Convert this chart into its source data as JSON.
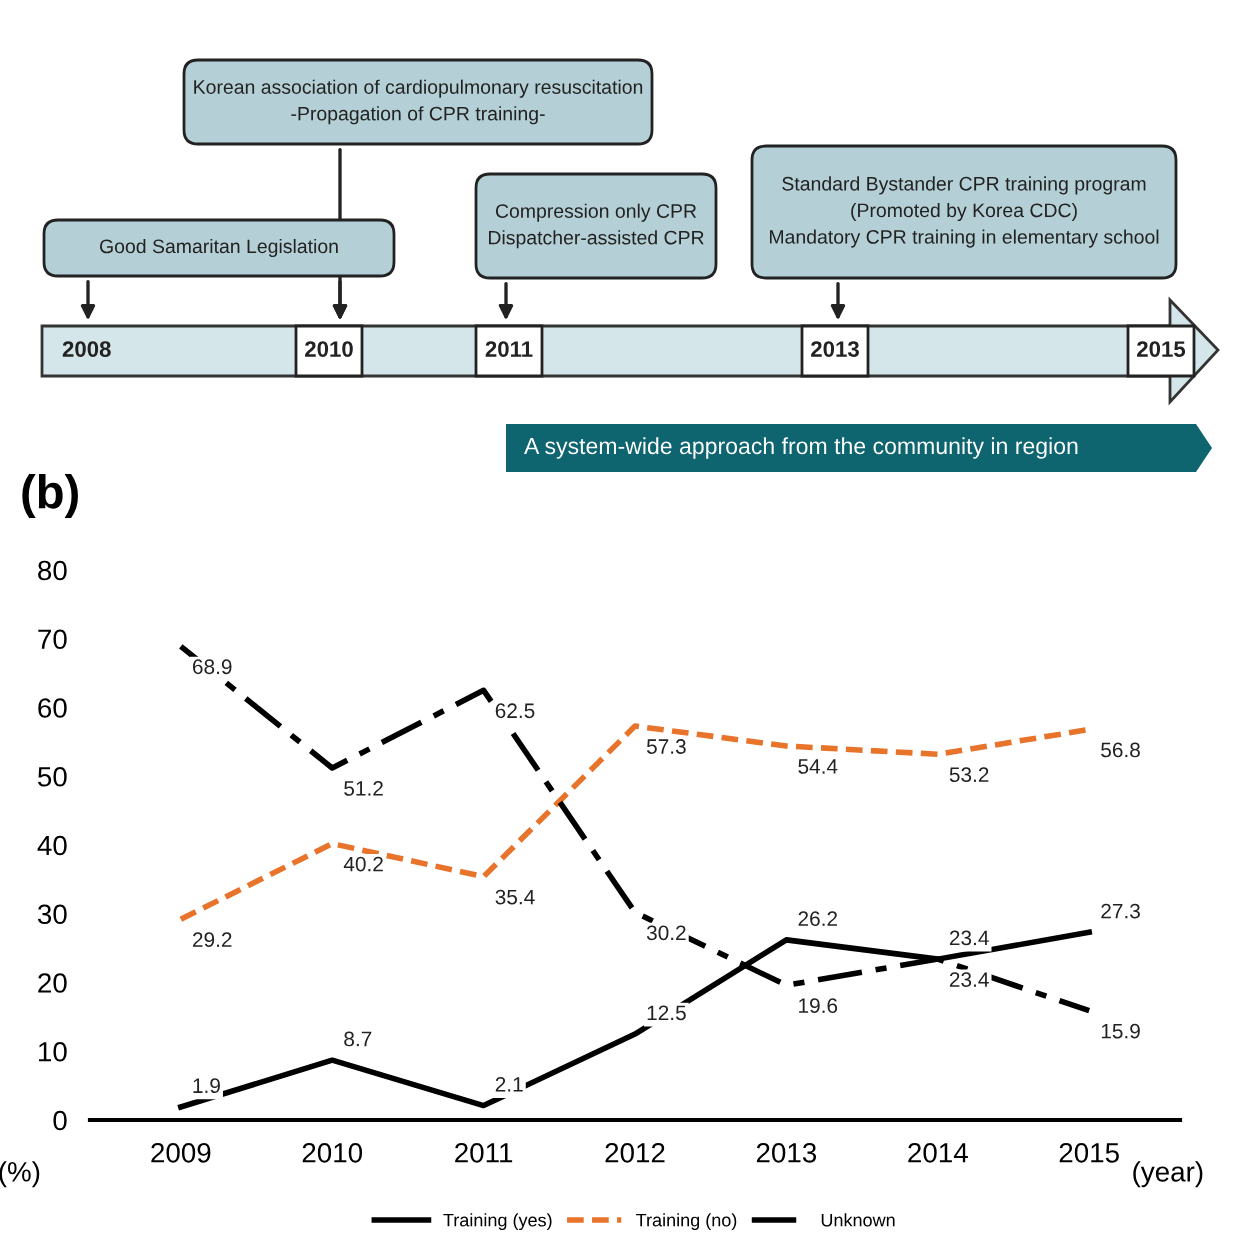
{
  "chart_data": {
    "type": "line",
    "categories": [
      "2009",
      "2010",
      "2011",
      "2012",
      "2013",
      "2014",
      "2015"
    ],
    "series": [
      {
        "name": "Training (yes)",
        "color": "#000000",
        "line_style": "solid",
        "values": [
          1.9,
          8.7,
          2.1,
          12.5,
          26.2,
          23.4,
          27.3
        ]
      },
      {
        "name": "Training (no)",
        "color": "#e8732a",
        "line_style": "dashed",
        "values": [
          29.2,
          40.2,
          35.4,
          57.3,
          54.4,
          53.2,
          56.8
        ]
      },
      {
        "name": "Unknown",
        "color": "#000000",
        "line_style": "dashdot",
        "values": [
          68.9,
          51.2,
          62.5,
          30.2,
          19.6,
          23.4,
          15.9
        ]
      }
    ],
    "ylim": [
      0,
      80
    ],
    "yticks": [
      0,
      10,
      20,
      30,
      40,
      50,
      60,
      70,
      80
    ],
    "xlabel": "(year)",
    "ylabel": "(%)",
    "data_labels": true,
    "legend": "bottom",
    "grid": false,
    "marker": "none",
    "annotations": [
      "Good Samaritan Legislation",
      "Korean association of cardiopulmonary resuscitation\n-Propagation of CPR training-",
      "Compression only CPR\nDispatcher-assisted CPR",
      "Standard Bystander CPR training program\n(Promoted by Korea CDC)\nMandatory CPR training in elementary school",
      "2008",
      "2010",
      "2011",
      "2013",
      "2015",
      "A system-wide approach from the community in region",
      "(b)"
    ]
  }
}
